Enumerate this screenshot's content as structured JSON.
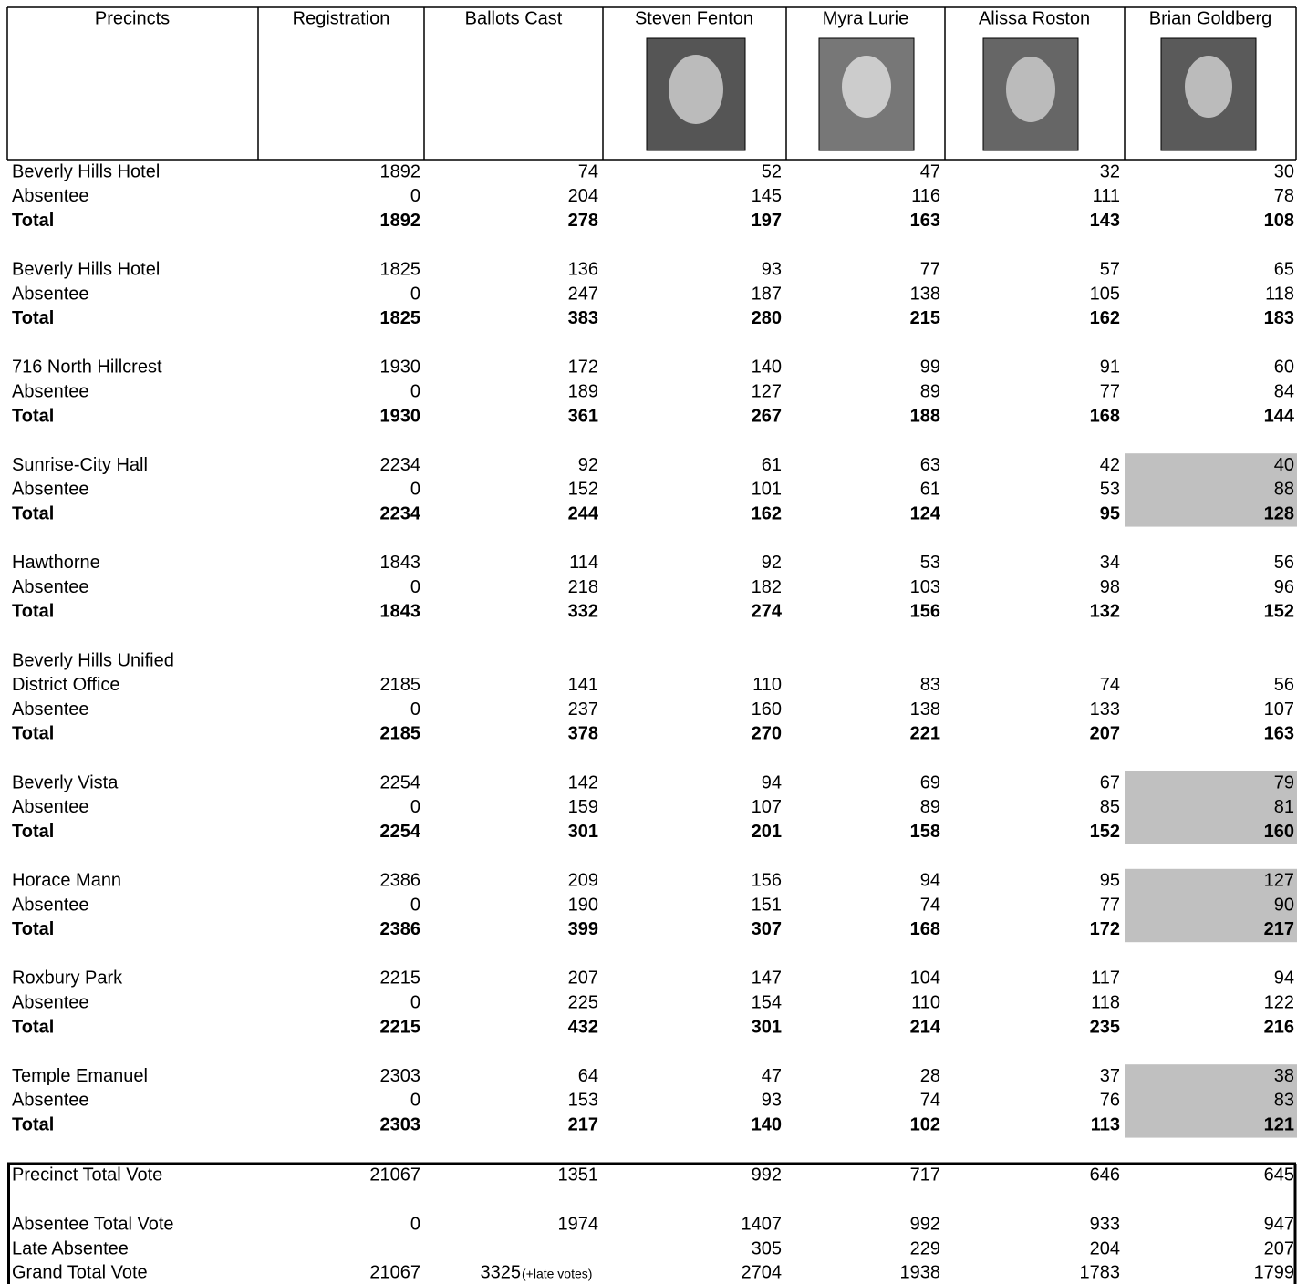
{
  "header": {
    "columns": [
      "Precincts",
      "Registration",
      "Ballots Cast",
      "Steven Fenton",
      "Myra Lurie",
      "Alissa Roston",
      "Brian Goldberg"
    ]
  },
  "groups": [
    {
      "shaded": false,
      "rows": [
        [
          "Beverly Hills Hotel",
          1892,
          74,
          52,
          47,
          32,
          30
        ],
        [
          "Absentee",
          0,
          204,
          145,
          116,
          111,
          78
        ],
        [
          "Total",
          1892,
          278,
          197,
          163,
          143,
          108
        ]
      ]
    },
    {
      "shaded": false,
      "rows": [
        [
          "Beverly Hills Hotel",
          1825,
          136,
          93,
          77,
          57,
          65
        ],
        [
          "Absentee",
          0,
          247,
          187,
          138,
          105,
          118
        ],
        [
          "Total",
          1825,
          383,
          280,
          215,
          162,
          183
        ]
      ]
    },
    {
      "shaded": false,
      "rows": [
        [
          "716 North Hillcrest",
          1930,
          172,
          140,
          99,
          91,
          60
        ],
        [
          "Absentee",
          0,
          189,
          127,
          89,
          77,
          84
        ],
        [
          "Total",
          1930,
          361,
          267,
          188,
          168,
          144
        ]
      ]
    },
    {
      "shaded": true,
      "rows": [
        [
          "Sunrise-City Hall",
          2234,
          92,
          61,
          63,
          42,
          40
        ],
        [
          "Absentee",
          0,
          152,
          101,
          61,
          53,
          88
        ],
        [
          "Total",
          2234,
          244,
          162,
          124,
          95,
          128
        ]
      ]
    },
    {
      "shaded": false,
      "rows": [
        [
          "Hawthorne",
          1843,
          114,
          92,
          53,
          34,
          56
        ],
        [
          "Absentee",
          0,
          218,
          182,
          103,
          98,
          96
        ],
        [
          "Total",
          1843,
          332,
          274,
          156,
          132,
          152
        ]
      ]
    },
    {
      "shaded": false,
      "rows": [
        [
          "Beverly Hills Unified"
        ],
        [
          "District Office",
          2185,
          141,
          110,
          83,
          74,
          56
        ],
        [
          "Absentee",
          0,
          237,
          160,
          138,
          133,
          107
        ],
        [
          "Total",
          2185,
          378,
          270,
          221,
          207,
          163
        ]
      ]
    },
    {
      "shaded": true,
      "rows": [
        [
          "Beverly Vista",
          2254,
          142,
          94,
          69,
          67,
          79
        ],
        [
          "Absentee",
          0,
          159,
          107,
          89,
          85,
          81
        ],
        [
          "Total",
          2254,
          301,
          201,
          158,
          152,
          160
        ]
      ]
    },
    {
      "shaded": true,
      "rows": [
        [
          "Horace Mann",
          2386,
          209,
          156,
          94,
          95,
          127
        ],
        [
          "Absentee",
          0,
          190,
          151,
          74,
          77,
          90
        ],
        [
          "Total",
          2386,
          399,
          307,
          168,
          172,
          217
        ]
      ]
    },
    {
      "shaded": false,
      "rows": [
        [
          "Roxbury Park",
          2215,
          207,
          147,
          104,
          117,
          94
        ],
        [
          "Absentee",
          0,
          225,
          154,
          110,
          118,
          122
        ],
        [
          "Total",
          2215,
          432,
          301,
          214,
          235,
          216
        ]
      ]
    },
    {
      "shaded": true,
      "rows": [
        [
          "Temple Emanuel",
          2303,
          64,
          47,
          28,
          37,
          38
        ],
        [
          "Absentee",
          0,
          153,
          93,
          74,
          76,
          83
        ],
        [
          "Total",
          2303,
          217,
          140,
          102,
          113,
          121
        ]
      ]
    }
  ],
  "summary": {
    "rows": [
      [
        "Precinct Total Vote",
        21067,
        1351,
        992,
        717,
        646,
        645
      ],
      [
        "Absentee Total Vote",
        0,
        1974,
        1407,
        992,
        933,
        947
      ],
      [
        "Late Absentee",
        null,
        null,
        305,
        229,
        204,
        207
      ],
      [
        "Grand Total Vote",
        21067,
        3325,
        2704,
        1938,
        1783,
        1799
      ]
    ],
    "ballots_note": "(+late votes)"
  }
}
